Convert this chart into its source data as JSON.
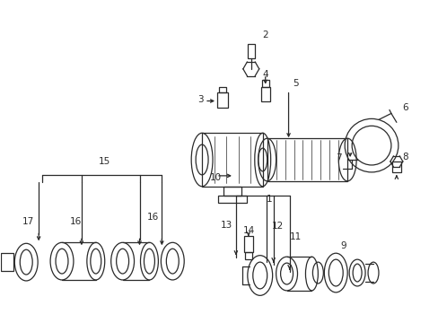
{
  "bg_color": "#ffffff",
  "line_color": "#2a2a2a",
  "figsize": [
    4.89,
    3.6
  ],
  "dpi": 100,
  "label_fs": 7.5
}
